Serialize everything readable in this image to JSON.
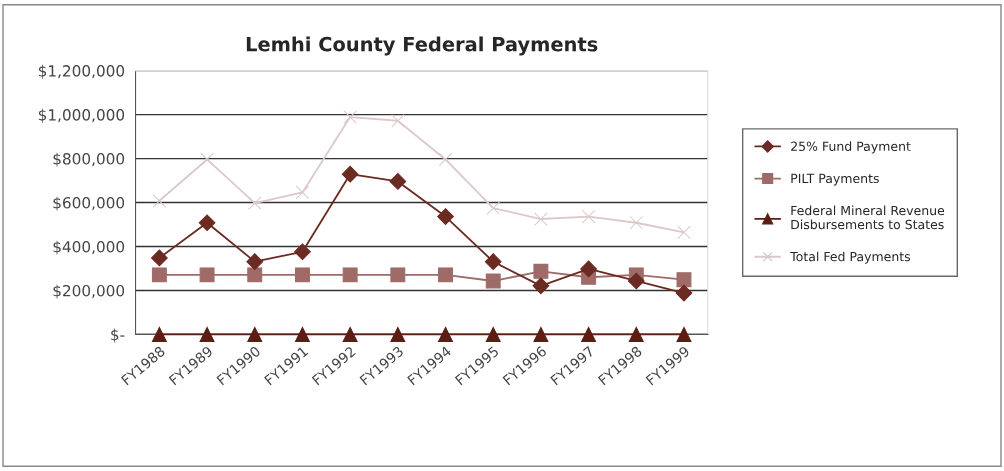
{
  "chart_data": {
    "type": "line",
    "title": "Lemhi County Federal Payments",
    "categories": [
      "FY1988",
      "FY1989",
      "FY1990",
      "FY1991",
      "FY1992",
      "FY1993",
      "FY1994",
      "FY1995",
      "FY1996",
      "FY1997",
      "FY1998",
      "FY1999"
    ],
    "series": [
      {
        "name": "25% Fund Payment",
        "color": "#6b2a22",
        "marker": "diamond",
        "values": [
          348000,
          508000,
          331000,
          376000,
          729000,
          696000,
          536000,
          331000,
          221000,
          298000,
          243000,
          188000
        ]
      },
      {
        "name": "PILT Payments",
        "color": "#9e6b68",
        "marker": "square",
        "values": [
          271000,
          271000,
          271000,
          271000,
          271000,
          271000,
          271000,
          243000,
          287000,
          260000,
          271000,
          249000
        ]
      },
      {
        "name": "Federal Mineral Revenue\nDisbursements to States",
        "color": "#5a1e14",
        "marker": "triangle",
        "values": [
          0,
          0,
          0,
          0,
          0,
          0,
          0,
          0,
          0,
          0,
          0,
          0
        ]
      },
      {
        "name": "Total Fed Payments",
        "color": "#dcc8c8",
        "marker": "cross",
        "values": [
          608000,
          796000,
          597000,
          646000,
          989000,
          972000,
          796000,
          575000,
          525000,
          536000,
          508000,
          464000
        ]
      }
    ],
    "ylim": [
      0,
      1200000
    ],
    "yticks": [
      {
        "value": 0,
        "label": "$-"
      },
      {
        "value": 200000,
        "label": "$200,000"
      },
      {
        "value": 400000,
        "label": "$400,000"
      },
      {
        "value": 600000,
        "label": "$600,000"
      },
      {
        "value": 800000,
        "label": "$800,000"
      },
      {
        "value": 1000000,
        "label": "$1,000,000"
      },
      {
        "value": 1200000,
        "label": "$1,200,000"
      }
    ],
    "grid": "y",
    "legend": "right"
  }
}
